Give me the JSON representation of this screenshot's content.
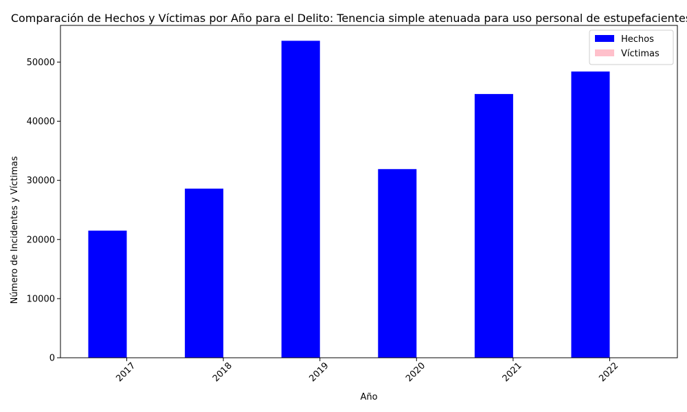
{
  "chart_data": {
    "type": "bar",
    "title": "Comparación de Hechos y Víctimas por Año para el Delito: Tenencia simple atenuada para uso personal de estupefacientes",
    "xlabel": "Año",
    "ylabel": "Número de Incidentes y Víctimas",
    "categories": [
      "2017",
      "2018",
      "2019",
      "2020",
      "2021",
      "2022"
    ],
    "series": [
      {
        "name": "Hechos",
        "color": "#0000ff",
        "values": [
          21500,
          28600,
          53600,
          31900,
          44600,
          48400
        ]
      },
      {
        "name": "Víctimas",
        "color": "#ffc0cb",
        "values": [
          0,
          0,
          0,
          0,
          0,
          0
        ]
      }
    ],
    "ylim": [
      0,
      56200
    ],
    "yticks": [
      0,
      10000,
      20000,
      30000,
      40000,
      50000
    ],
    "grid": false,
    "legend_position": "top-right"
  }
}
